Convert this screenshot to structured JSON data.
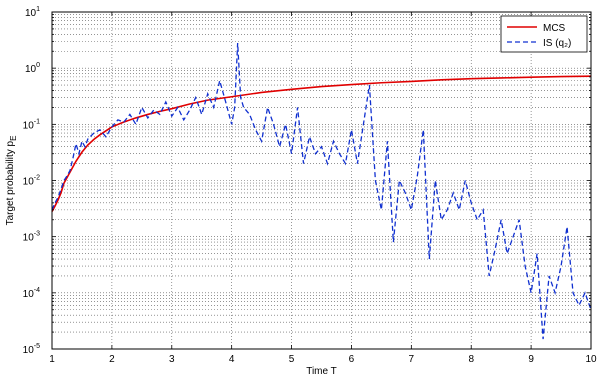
{
  "chart_data": {
    "type": "line",
    "xlabel": "Time T",
    "ylabel": "Target probability p",
    "ylabel_sub": "E",
    "xlim": [
      1,
      10
    ],
    "ylim": [
      1e-05,
      10
    ],
    "yscale": "log",
    "grid": true,
    "legend_position": "top-right",
    "x_ticks": [
      "1",
      "2",
      "3",
      "4",
      "5",
      "6",
      "7",
      "8",
      "9",
      "10"
    ],
    "y_ticks": [
      {
        "base": "10",
        "exp": "-5",
        "value": 1e-05
      },
      {
        "base": "10",
        "exp": "-4",
        "value": 0.0001
      },
      {
        "base": "10",
        "exp": "-3",
        "value": 0.001
      },
      {
        "base": "10",
        "exp": "-2",
        "value": 0.01
      },
      {
        "base": "10",
        "exp": "-1",
        "value": 0.1
      },
      {
        "base": "10",
        "exp": "0",
        "value": 1
      },
      {
        "base": "10",
        "exp": "1",
        "value": 10
      }
    ],
    "series": [
      {
        "name": "MCS",
        "color": "#e00000",
        "style": "solid",
        "x": [
          1.0,
          1.05,
          1.1,
          1.15,
          1.2,
          1.3,
          1.4,
          1.5,
          1.6,
          1.7,
          1.8,
          2.0,
          2.2,
          2.4,
          2.6,
          2.8,
          3.0,
          3.3,
          3.6,
          4.0,
          4.5,
          5.0,
          5.5,
          6.0,
          6.5,
          7.0,
          7.5,
          8.0,
          8.5,
          9.0,
          9.5,
          10.0
        ],
        "y": [
          0.0028,
          0.0035,
          0.0045,
          0.006,
          0.009,
          0.014,
          0.022,
          0.032,
          0.043,
          0.054,
          0.065,
          0.09,
          0.11,
          0.13,
          0.15,
          0.17,
          0.19,
          0.23,
          0.27,
          0.31,
          0.37,
          0.42,
          0.47,
          0.51,
          0.55,
          0.58,
          0.62,
          0.65,
          0.67,
          0.69,
          0.71,
          0.72
        ]
      },
      {
        "name": "IS (q₂)",
        "color": "#1030d0",
        "style": "dashed",
        "x": [
          1.0,
          1.05,
          1.1,
          1.15,
          1.2,
          1.25,
          1.3,
          1.35,
          1.4,
          1.45,
          1.5,
          1.55,
          1.6,
          1.7,
          1.8,
          1.9,
          2.0,
          2.1,
          2.2,
          2.3,
          2.4,
          2.5,
          2.6,
          2.7,
          2.8,
          2.9,
          3.0,
          3.1,
          3.2,
          3.3,
          3.4,
          3.5,
          3.6,
          3.7,
          3.8,
          3.9,
          4.0,
          4.05,
          4.1,
          4.15,
          4.2,
          4.3,
          4.4,
          4.5,
          4.6,
          4.7,
          4.8,
          4.9,
          5.0,
          5.1,
          5.2,
          5.3,
          5.4,
          5.5,
          5.6,
          5.7,
          5.8,
          5.9,
          6.0,
          6.1,
          6.2,
          6.3,
          6.4,
          6.5,
          6.6,
          6.7,
          6.8,
          6.9,
          7.0,
          7.1,
          7.2,
          7.3,
          7.4,
          7.5,
          7.6,
          7.7,
          7.8,
          7.9,
          8.0,
          8.1,
          8.2,
          8.3,
          8.4,
          8.5,
          8.6,
          8.7,
          8.8,
          8.9,
          9.0,
          9.1,
          9.2,
          9.3,
          9.4,
          9.5,
          9.6,
          9.7,
          9.8,
          9.9,
          10.0
        ],
        "y": [
          0.003,
          0.004,
          0.005,
          0.007,
          0.01,
          0.012,
          0.015,
          0.025,
          0.045,
          0.03,
          0.05,
          0.04,
          0.055,
          0.07,
          0.08,
          0.06,
          0.09,
          0.12,
          0.11,
          0.15,
          0.1,
          0.2,
          0.13,
          0.18,
          0.15,
          0.25,
          0.14,
          0.2,
          0.12,
          0.18,
          0.3,
          0.15,
          0.35,
          0.2,
          0.6,
          0.25,
          0.1,
          0.2,
          2.8,
          0.3,
          0.2,
          0.15,
          0.08,
          0.05,
          0.2,
          0.1,
          0.04,
          0.1,
          0.03,
          0.2,
          0.02,
          0.06,
          0.03,
          0.04,
          0.02,
          0.05,
          0.03,
          0.02,
          0.08,
          0.02,
          0.1,
          0.5,
          0.01,
          0.003,
          0.05,
          0.0008,
          0.01,
          0.006,
          0.003,
          0.012,
          0.08,
          0.0004,
          0.01,
          0.002,
          0.003,
          0.006,
          0.003,
          0.01,
          0.004,
          0.002,
          0.003,
          0.0002,
          0.0006,
          0.002,
          0.0005,
          0.001,
          0.002,
          0.0003,
          0.0001,
          0.0005,
          1.5e-05,
          0.0002,
          0.0001,
          0.0003,
          0.0015,
          0.0001,
          6e-05,
          0.0001,
          5e-05
        ]
      }
    ]
  }
}
